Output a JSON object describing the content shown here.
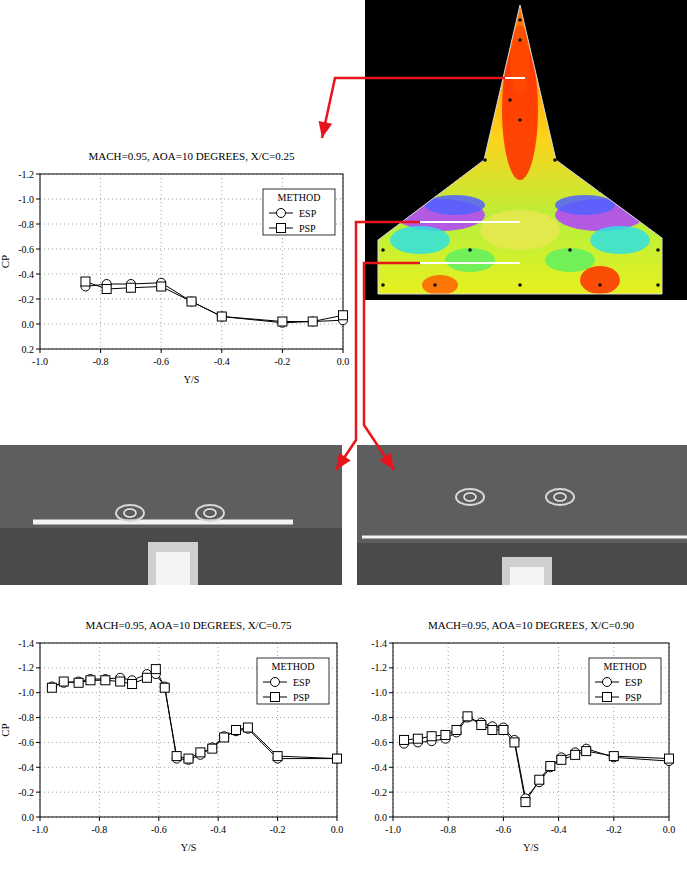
{
  "chart_data": [
    {
      "type": "line",
      "title": "MACH=0.95, AOA=10 DEGREES, X/C=0.25",
      "xlabel": "Y/S",
      "ylabel": "CP",
      "legend_title": "METHOD",
      "x": [
        -0.85,
        -0.78,
        -0.7,
        -0.6,
        -0.5,
        -0.4,
        -0.2,
        -0.1,
        0.0
      ],
      "series": [
        {
          "name": "ESP",
          "color": "#000000",
          "marker": "circle",
          "values": [
            -0.3,
            -0.32,
            -0.32,
            -0.33,
            -0.18,
            -0.06,
            -0.01,
            -0.02,
            -0.03
          ]
        },
        {
          "name": "PSP",
          "color": "#000000",
          "marker": "square",
          "values": [
            -0.34,
            -0.28,
            -0.29,
            -0.3,
            -0.18,
            -0.06,
            -0.02,
            -0.02,
            -0.07
          ]
        }
      ],
      "xlim": [
        -1.0,
        0.0
      ],
      "xticks": [
        {
          "value": -1.0,
          "label": "-1.0"
        },
        -0.8,
        -0.6,
        -0.4,
        -0.2,
        {
          "value": 0.0,
          "label": "0.0"
        }
      ],
      "ylim": [
        0.2,
        -1.2
      ],
      "yticks": [
        0.2,
        {
          "value": 0.0,
          "label": "0.0"
        },
        -0.2,
        -0.4,
        -0.6,
        -0.8,
        {
          "value": -1.0,
          "label": "-1.0"
        },
        -1.2
      ],
      "grid": true,
      "legend": "top-right"
    },
    {
      "type": "line",
      "title": "MACH=0.95, AOA=10 DEGREES, X/C=0.75",
      "xlabel": "Y/S",
      "ylabel": "CP",
      "legend_title": "METHOD",
      "x": [
        -0.96,
        -0.92,
        -0.87,
        -0.83,
        -0.78,
        -0.73,
        -0.69,
        -0.64,
        -0.61,
        -0.58,
        -0.54,
        -0.5,
        -0.46,
        -0.42,
        -0.38,
        -0.34,
        -0.3,
        -0.2,
        0.0
      ],
      "series": [
        {
          "name": "ESP",
          "color": "#000000",
          "marker": "circle",
          "values": [
            -1.05,
            -1.08,
            -1.09,
            -1.11,
            -1.11,
            -1.12,
            -1.1,
            -1.15,
            -1.15,
            -1.05,
            -0.47,
            -0.46,
            -0.5,
            -0.56,
            -0.65,
            -0.69,
            -0.71,
            -0.47,
            -0.47
          ]
        },
        {
          "name": "PSP",
          "color": "#000000",
          "marker": "square",
          "values": [
            -1.04,
            -1.09,
            -1.08,
            -1.1,
            -1.1,
            -1.09,
            -1.07,
            -1.12,
            -1.19,
            -1.04,
            -0.49,
            -0.47,
            -0.52,
            -0.55,
            -0.64,
            -0.7,
            -0.72,
            -0.49,
            -0.47
          ]
        }
      ],
      "xlim": [
        -1.0,
        0.0
      ],
      "xticks": [
        {
          "value": -1.0,
          "label": "-1.0"
        },
        -0.8,
        -0.6,
        -0.4,
        -0.2,
        {
          "value": 0.0,
          "label": "0.0"
        }
      ],
      "ylim": [
        0.0,
        -1.4
      ],
      "yticks": [
        {
          "value": 0.0,
          "label": "0.0"
        },
        -0.2,
        -0.4,
        -0.6,
        -0.8,
        {
          "value": -1.0,
          "label": "-1.0"
        },
        -1.2,
        -1.4
      ],
      "grid": true,
      "legend": "top-right"
    },
    {
      "type": "line",
      "title": "MACH=0.95, AOA=10 DEGREES, X/C=0.90",
      "xlabel": "Y/S",
      "legend_title": "METHOD",
      "x": [
        -0.96,
        -0.91,
        -0.86,
        -0.81,
        -0.77,
        -0.73,
        -0.68,
        -0.64,
        -0.6,
        -0.56,
        -0.52,
        -0.47,
        -0.43,
        -0.39,
        -0.34,
        -0.3,
        -0.2,
        0.0
      ],
      "series": [
        {
          "name": "ESP",
          "color": "#000000",
          "marker": "circle",
          "values": [
            -0.59,
            -0.6,
            -0.61,
            -0.63,
            -0.68,
            -0.8,
            -0.76,
            -0.73,
            -0.72,
            -0.62,
            -0.15,
            -0.28,
            -0.4,
            -0.48,
            -0.52,
            -0.55,
            -0.48,
            -0.45
          ]
        },
        {
          "name": "PSP",
          "color": "#000000",
          "marker": "square",
          "values": [
            -0.62,
            -0.63,
            -0.65,
            -0.66,
            -0.7,
            -0.81,
            -0.74,
            -0.7,
            -0.7,
            -0.6,
            -0.12,
            -0.3,
            -0.41,
            -0.46,
            -0.5,
            -0.53,
            -0.49,
            -0.47
          ]
        }
      ],
      "xlim": [
        -1.0,
        0.0
      ],
      "xticks": [
        {
          "value": -1.0,
          "label": "-1.0"
        },
        -0.8,
        -0.6,
        -0.4,
        -0.2,
        {
          "value": 0.0,
          "label": "0.0"
        }
      ],
      "ylim": [
        0.0,
        -1.4
      ],
      "yticks": [
        {
          "value": 0.0,
          "label": "0.0"
        },
        -0.2,
        -0.4,
        -0.6,
        -0.8,
        {
          "value": -1.0,
          "label": "-1.0"
        },
        -1.2,
        -1.4
      ],
      "grid": true,
      "legend": "top-right"
    }
  ]
}
